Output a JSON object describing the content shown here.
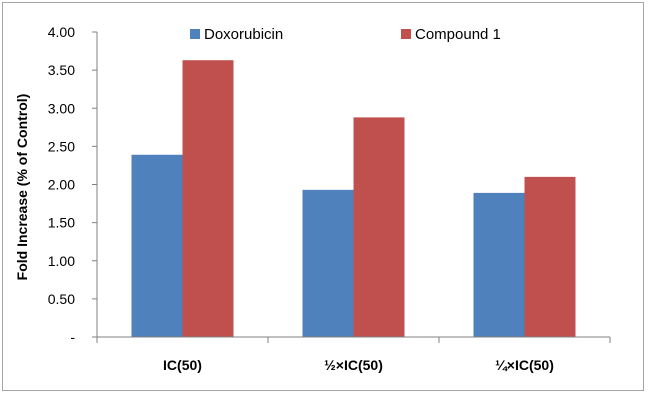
{
  "chart_data": {
    "type": "bar",
    "ylabel": "Fold Increase (% of Control)",
    "xlabel": "",
    "categories": [
      "IC(50)",
      "½×IC(50)",
      "¼×IC(50)"
    ],
    "series": [
      {
        "name": "Doxorubicin",
        "color": "#4f81bd",
        "values": [
          2.39,
          1.93,
          1.89
        ]
      },
      {
        "name": "Compound 1",
        "color": "#c0504d",
        "values": [
          3.63,
          2.88,
          2.1
        ]
      }
    ],
    "ylim": [
      0,
      4
    ],
    "yticks": [
      {
        "value": 0,
        "label": "-"
      },
      {
        "value": 0.5,
        "label": "0.50"
      },
      {
        "value": 1.0,
        "label": "1.00"
      },
      {
        "value": 1.5,
        "label": "1.50"
      },
      {
        "value": 2.0,
        "label": "2.00"
      },
      {
        "value": 2.5,
        "label": "2.50"
      },
      {
        "value": 3.0,
        "label": "3.00"
      },
      {
        "value": 3.5,
        "label": "3.50"
      },
      {
        "value": 4.0,
        "label": "4.00"
      }
    ],
    "grid": false,
    "legend_position": "top"
  }
}
